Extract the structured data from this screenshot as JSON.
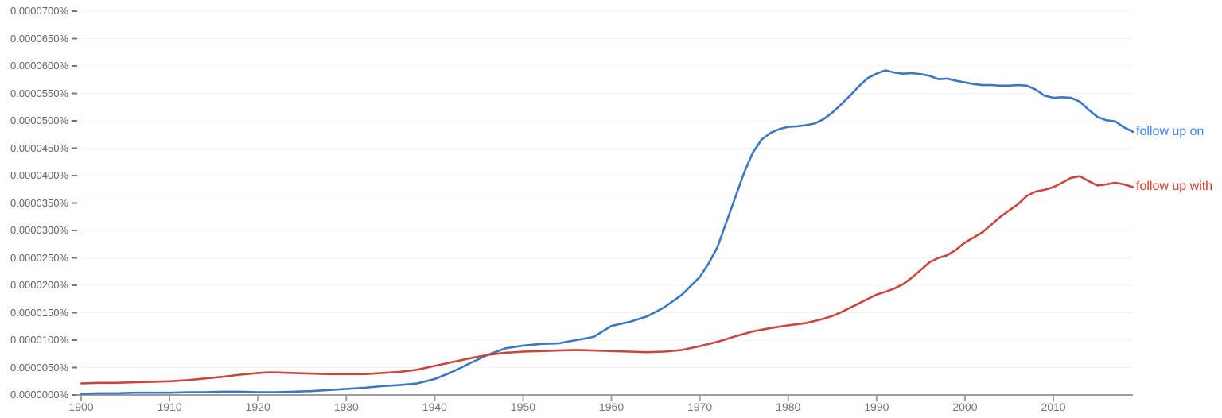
{
  "page": {
    "background_color": "#ffffff",
    "description": "Google Books Ngram Viewer style line chart comparing two phrases"
  },
  "axis_style": {
    "axis_line_color": "#9e9e9e",
    "tick_mark_color": "#757575",
    "gridline_color": "#f1f3f4",
    "y_label_color": "#5f6368",
    "x_label_color": "#757575"
  },
  "chart_data": {
    "type": "line",
    "title": "",
    "xlabel": "",
    "ylabel": "",
    "xlim": [
      1900,
      2019
    ],
    "ylim": [
      "0.0000000%",
      "0.0000700%"
    ],
    "grid": "horizontal gridlines every 0.0000050%",
    "legend_position": "inline labels at right end of each line",
    "value_unit": "percent x 1e-7 (e.g. 592 = 0.0000592%)",
    "y_ticks": [
      "0.0000700%",
      "0.0000650%",
      "0.0000600%",
      "0.0000550%",
      "0.0000500%",
      "0.0000450%",
      "0.0000400%",
      "0.0000350%",
      "0.0000300%",
      "0.0000250%",
      "0.0000200%",
      "0.0000150%",
      "0.0000100%",
      "0.0000050%",
      "0.0000000%"
    ],
    "x_ticks": [
      "1900",
      "1910",
      "1920",
      "1930",
      "1940",
      "1950",
      "1960",
      "1970",
      "1980",
      "1990",
      "2000",
      "2010"
    ],
    "series": [
      {
        "name": "follow up on",
        "color": "#3b76c4",
        "label_color": "#4285f4",
        "points": [
          [
            1900,
            2
          ],
          [
            1902,
            3
          ],
          [
            1904,
            3
          ],
          [
            1906,
            4
          ],
          [
            1908,
            4
          ],
          [
            1910,
            4
          ],
          [
            1912,
            5
          ],
          [
            1914,
            5
          ],
          [
            1916,
            6
          ],
          [
            1918,
            6
          ],
          [
            1920,
            5
          ],
          [
            1922,
            5
          ],
          [
            1924,
            6
          ],
          [
            1926,
            7
          ],
          [
            1928,
            9
          ],
          [
            1930,
            11
          ],
          [
            1932,
            13
          ],
          [
            1934,
            16
          ],
          [
            1936,
            18
          ],
          [
            1938,
            21
          ],
          [
            1940,
            29
          ],
          [
            1942,
            42
          ],
          [
            1944,
            58
          ],
          [
            1946,
            73
          ],
          [
            1948,
            85
          ],
          [
            1950,
            90
          ],
          [
            1952,
            93
          ],
          [
            1954,
            94
          ],
          [
            1956,
            100
          ],
          [
            1958,
            106
          ],
          [
            1960,
            126
          ],
          [
            1962,
            133
          ],
          [
            1964,
            143
          ],
          [
            1966,
            160
          ],
          [
            1968,
            183
          ],
          [
            1970,
            215
          ],
          [
            1971,
            240
          ],
          [
            1972,
            270
          ],
          [
            1973,
            315
          ],
          [
            1974,
            360
          ],
          [
            1975,
            405
          ],
          [
            1976,
            442
          ],
          [
            1977,
            466
          ],
          [
            1978,
            478
          ],
          [
            1979,
            485
          ],
          [
            1980,
            489
          ],
          [
            1981,
            490
          ],
          [
            1982,
            492
          ],
          [
            1983,
            495
          ],
          [
            1984,
            503
          ],
          [
            1985,
            515
          ],
          [
            1986,
            530
          ],
          [
            1987,
            546
          ],
          [
            1988,
            563
          ],
          [
            1989,
            578
          ],
          [
            1990,
            586
          ],
          [
            1991,
            592
          ],
          [
            1992,
            588
          ],
          [
            1993,
            586
          ],
          [
            1994,
            587
          ],
          [
            1995,
            585
          ],
          [
            1996,
            582
          ],
          [
            1997,
            576
          ],
          [
            1998,
            577
          ],
          [
            1999,
            573
          ],
          [
            2000,
            570
          ],
          [
            2001,
            567
          ],
          [
            2002,
            565
          ],
          [
            2003,
            565
          ],
          [
            2004,
            564
          ],
          [
            2005,
            564
          ],
          [
            2006,
            565
          ],
          [
            2007,
            564
          ],
          [
            2008,
            557
          ],
          [
            2009,
            546
          ],
          [
            2010,
            542
          ],
          [
            2011,
            543
          ],
          [
            2012,
            542
          ],
          [
            2013,
            535
          ],
          [
            2014,
            520
          ],
          [
            2015,
            507
          ],
          [
            2016,
            501
          ],
          [
            2017,
            499
          ],
          [
            2018,
            488
          ],
          [
            2019,
            480
          ]
        ]
      },
      {
        "name": "follow up with",
        "color": "#c9453d",
        "label_color": "#d93a2d",
        "points": [
          [
            1900,
            21
          ],
          [
            1902,
            22
          ],
          [
            1904,
            22
          ],
          [
            1906,
            23
          ],
          [
            1908,
            24
          ],
          [
            1910,
            25
          ],
          [
            1912,
            27
          ],
          [
            1914,
            30
          ],
          [
            1916,
            33
          ],
          [
            1918,
            37
          ],
          [
            1920,
            40
          ],
          [
            1921,
            41
          ],
          [
            1922,
            41
          ],
          [
            1924,
            40
          ],
          [
            1926,
            39
          ],
          [
            1928,
            38
          ],
          [
            1930,
            38
          ],
          [
            1932,
            38
          ],
          [
            1934,
            40
          ],
          [
            1936,
            42
          ],
          [
            1938,
            46
          ],
          [
            1940,
            53
          ],
          [
            1942,
            60
          ],
          [
            1944,
            67
          ],
          [
            1946,
            73
          ],
          [
            1948,
            77
          ],
          [
            1950,
            79
          ],
          [
            1952,
            80
          ],
          [
            1954,
            81
          ],
          [
            1956,
            82
          ],
          [
            1958,
            81
          ],
          [
            1960,
            80
          ],
          [
            1962,
            79
          ],
          [
            1964,
            78
          ],
          [
            1966,
            79
          ],
          [
            1968,
            82
          ],
          [
            1970,
            89
          ],
          [
            1972,
            97
          ],
          [
            1974,
            107
          ],
          [
            1976,
            116
          ],
          [
            1978,
            122
          ],
          [
            1980,
            127
          ],
          [
            1982,
            131
          ],
          [
            1983,
            135
          ],
          [
            1984,
            139
          ],
          [
            1985,
            144
          ],
          [
            1986,
            151
          ],
          [
            1988,
            167
          ],
          [
            1990,
            183
          ],
          [
            1991,
            188
          ],
          [
            1992,
            194
          ],
          [
            1993,
            202
          ],
          [
            1994,
            214
          ],
          [
            1995,
            228
          ],
          [
            1996,
            242
          ],
          [
            1997,
            250
          ],
          [
            1998,
            255
          ],
          [
            1999,
            265
          ],
          [
            2000,
            278
          ],
          [
            2002,
            297
          ],
          [
            2004,
            325
          ],
          [
            2006,
            348
          ],
          [
            2007,
            363
          ],
          [
            2008,
            371
          ],
          [
            2009,
            374
          ],
          [
            2010,
            379
          ],
          [
            2011,
            387
          ],
          [
            2012,
            396
          ],
          [
            2013,
            399
          ],
          [
            2014,
            390
          ],
          [
            2015,
            382
          ],
          [
            2016,
            384
          ],
          [
            2017,
            387
          ],
          [
            2018,
            384
          ],
          [
            2019,
            379
          ]
        ]
      }
    ]
  }
}
